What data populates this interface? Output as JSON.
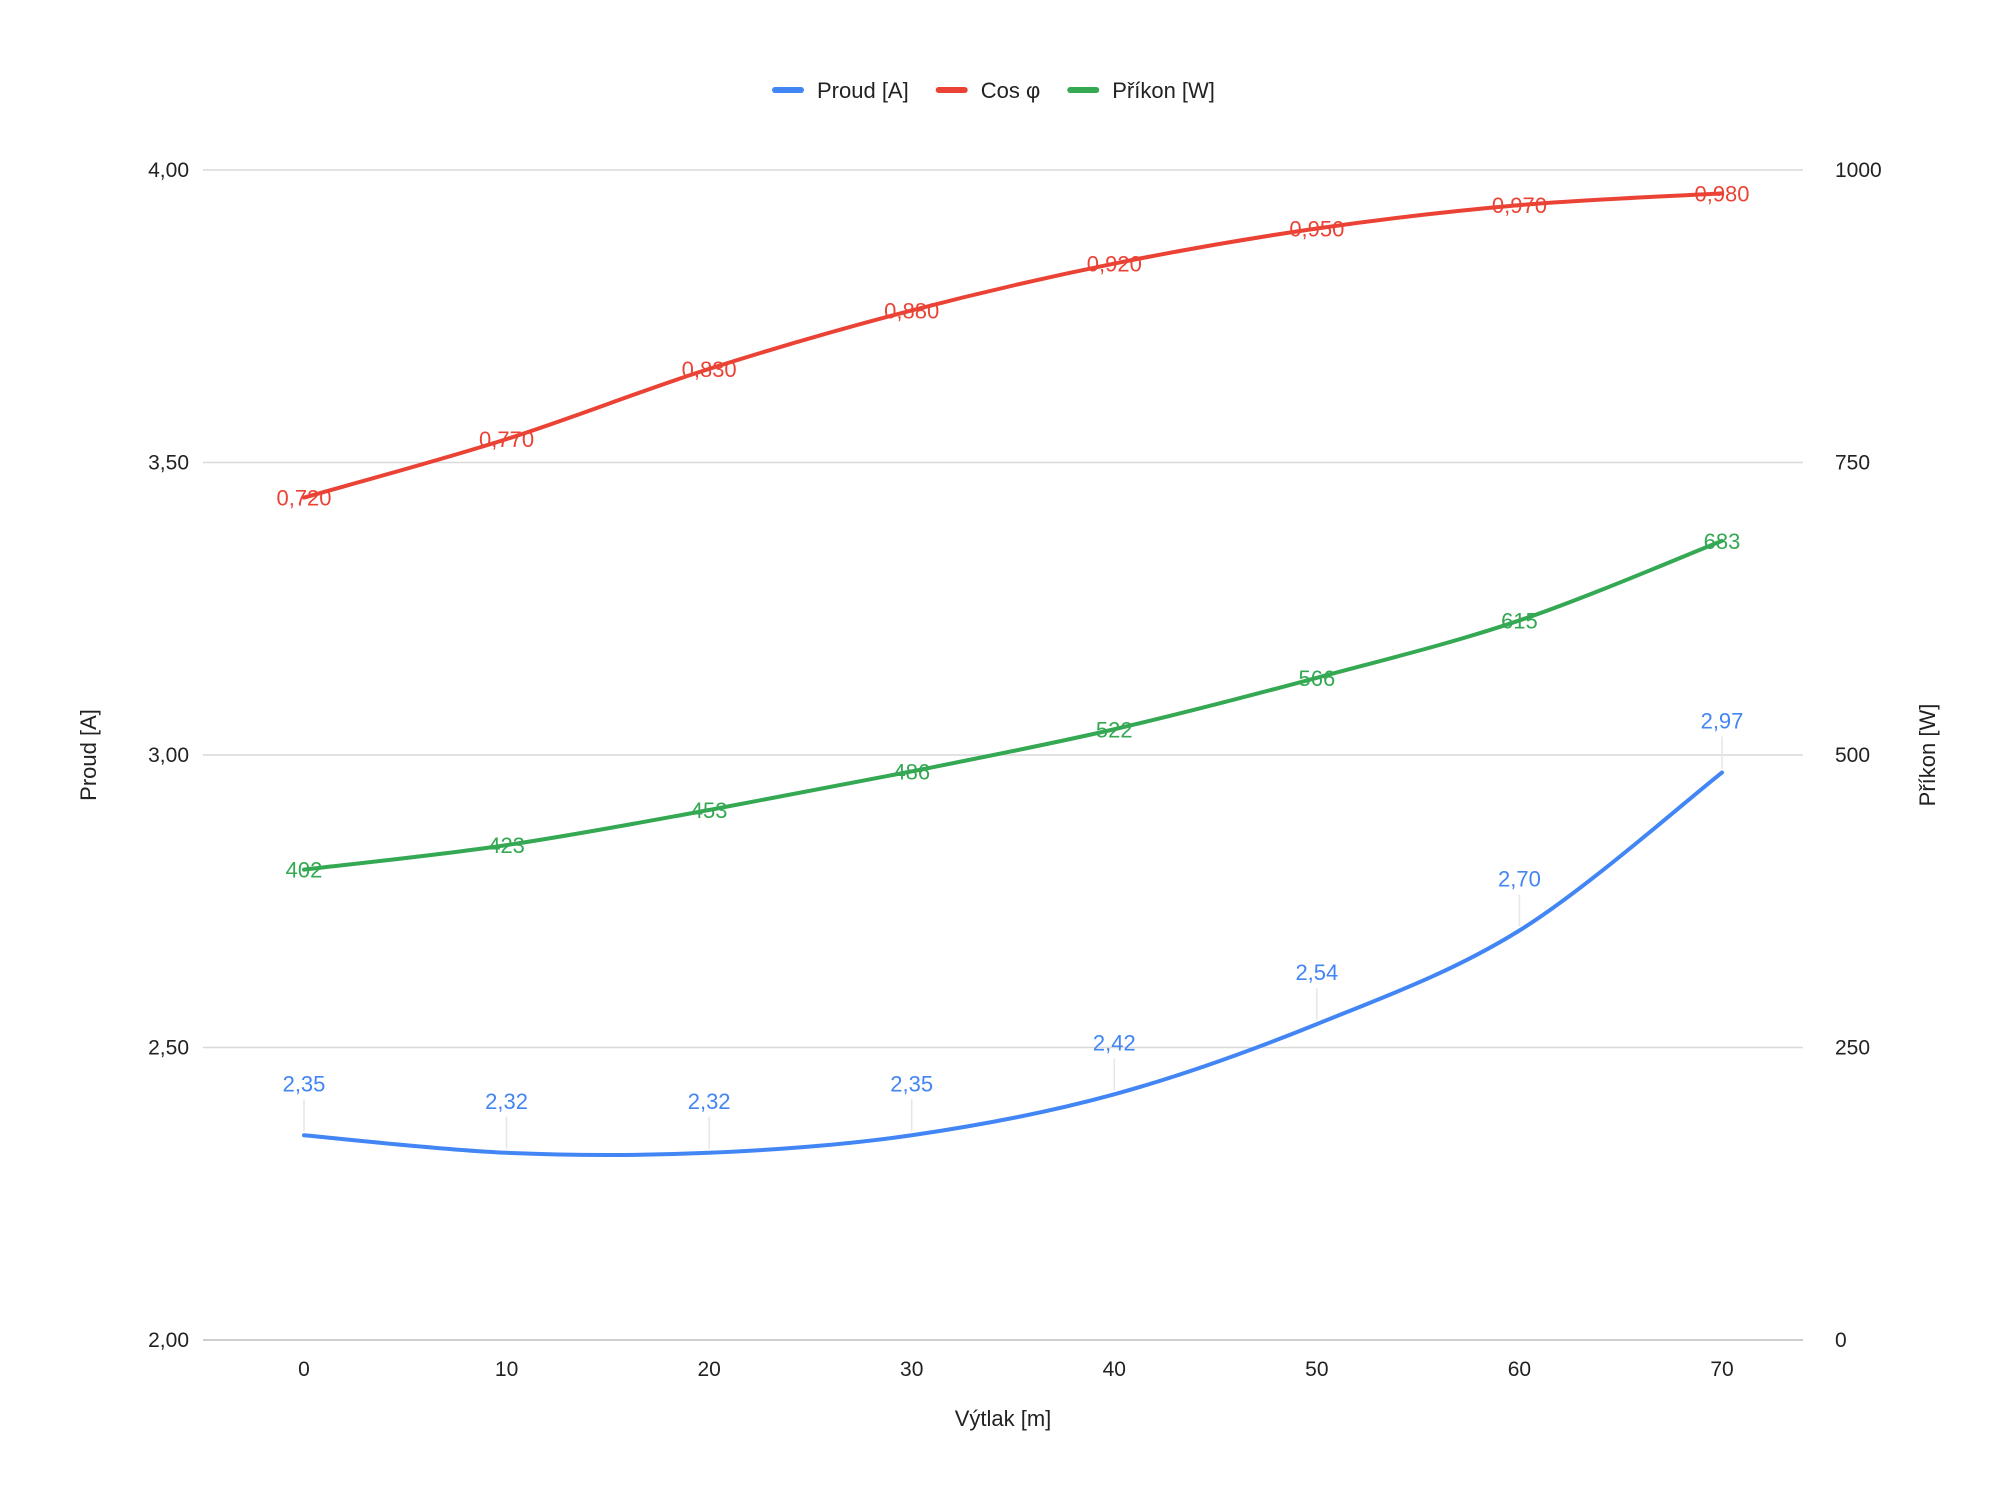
{
  "chart_data": {
    "type": "line",
    "title": "",
    "xlabel": "Výtlak [m]",
    "ylabel_left": "Proud [A]",
    "ylabel_right": "Příkon [W]",
    "x": [
      0,
      10,
      20,
      30,
      40,
      50,
      60,
      70
    ],
    "x_tick_labels": [
      "0",
      "10",
      "20",
      "30",
      "40",
      "50",
      "60",
      "70"
    ],
    "y_left_lim": [
      2.0,
      4.0
    ],
    "y_left_ticks": [
      "2,00",
      "2,50",
      "3,00",
      "3,50",
      "4,00"
    ],
    "y_right_lim": [
      0,
      1000
    ],
    "y_right_ticks": [
      "0",
      "250",
      "500",
      "750",
      "1000"
    ],
    "grid": true,
    "legend_position": "top-center",
    "series": [
      {
        "name": "Proud [A]",
        "axis": "left",
        "color": "#4285F4",
        "values": [
          2.35,
          2.32,
          2.32,
          2.35,
          2.42,
          2.54,
          2.7,
          2.97
        ],
        "labels": [
          "2,35",
          "2,32",
          "2,32",
          "2,35",
          "2,42",
          "2,54",
          "2,70",
          "2,97"
        ]
      },
      {
        "name": "Cos φ",
        "axis": "left",
        "color": "#EA4335",
        "values": [
          0.72,
          0.77,
          0.83,
          0.88,
          0.92,
          0.95,
          0.97,
          0.98
        ],
        "labels": [
          "0,720",
          "0,770",
          "0,830",
          "0,880",
          "0,920",
          "0,950",
          "0,970",
          "0,980"
        ]
      },
      {
        "name": "Příkon [W]",
        "axis": "right",
        "color": "#34A853",
        "values": [
          402,
          423,
          453,
          486,
          522,
          566,
          615,
          683
        ],
        "labels": [
          "402",
          "423",
          "453",
          "486",
          "522",
          "566",
          "615",
          "683"
        ]
      }
    ]
  }
}
